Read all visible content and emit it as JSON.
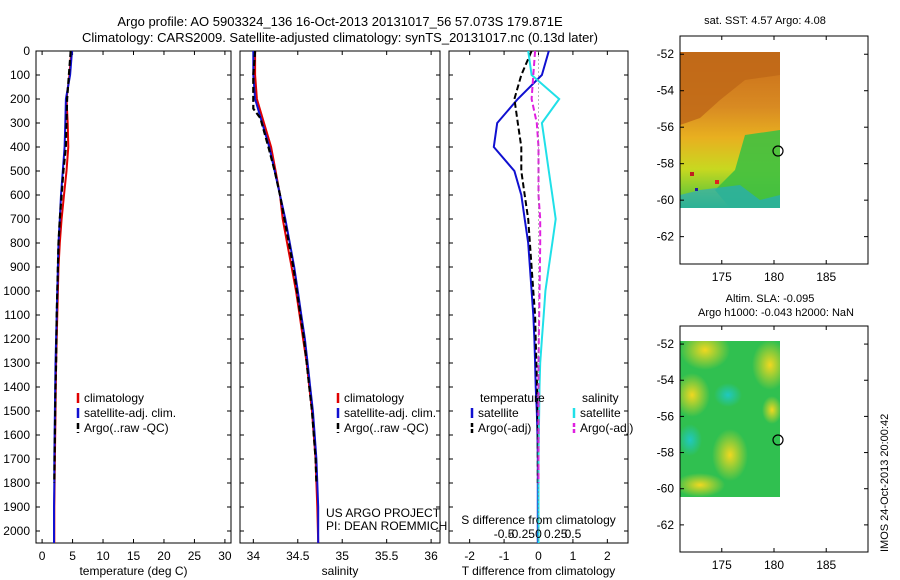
{
  "header": {
    "line1": "Argo profile: AO 5903324_136 16-Oct-2013 20131017_56 57.073S 179.871E",
    "line2": "Climatology: CARS2009. Satellite-adjusted climatology: synTS_20131017.nc (0.13d later)"
  },
  "colors": {
    "climatology": "#e00000",
    "satellite": "#1010d0",
    "argo": "#000000",
    "sal_satellite": "#20e0e8",
    "sal_argo": "#e020e0"
  },
  "chart_data": [
    {
      "type": "line",
      "panel": "temperature",
      "xlabel": "temperature (deg C)",
      "ylabel": "",
      "xlim": [
        -1,
        31
      ],
      "ylim": [
        2050,
        0
      ],
      "xticks": [
        0,
        5,
        10,
        15,
        20,
        25,
        30
      ],
      "yticks": [
        0,
        100,
        200,
        300,
        400,
        500,
        600,
        700,
        800,
        900,
        1000,
        1100,
        1200,
        1300,
        1400,
        1500,
        1600,
        1700,
        1800,
        1900,
        2000
      ],
      "legend": [
        "climatology",
        "satellite-adj. clim.",
        "Argo(..raw -QC)"
      ],
      "series": [
        {
          "name": "climatology",
          "x": [
            4.8,
            4.5,
            4.0,
            4.2,
            4.3,
            4.0,
            3.6,
            3.2,
            2.9,
            2.7,
            2.6,
            2.5,
            2.4,
            2.3,
            2.25,
            2.2,
            2.15,
            2.1,
            2.05,
            2.0,
            2.0
          ],
          "y": [
            0,
            100,
            200,
            300,
            400,
            500,
            600,
            700,
            800,
            900,
            1000,
            1100,
            1200,
            1300,
            1400,
            1500,
            1600,
            1700,
            1800,
            1900,
            2050
          ]
        },
        {
          "name": "satellite-adj. clim.",
          "x": [
            4.9,
            4.6,
            3.9,
            3.8,
            3.7,
            3.4,
            3.1,
            2.9,
            2.7,
            2.6,
            2.5,
            2.4,
            2.3,
            2.2,
            2.15,
            2.1,
            2.05,
            2.0,
            2.0,
            1.95,
            1.95
          ],
          "y": [
            0,
            100,
            200,
            300,
            400,
            500,
            600,
            700,
            800,
            900,
            1000,
            1100,
            1200,
            1300,
            1400,
            1500,
            1600,
            1700,
            1800,
            1900,
            2050
          ]
        },
        {
          "name": "Argo(..raw -QC)",
          "x": [
            4.7,
            4.4,
            4.1,
            4.0,
            3.9,
            3.5,
            3.2,
            2.9,
            2.7,
            2.6,
            2.5,
            2.4,
            2.35,
            2.3,
            2.2,
            2.15,
            2.1,
            2.05,
            2.0
          ],
          "y": [
            0,
            100,
            200,
            300,
            400,
            500,
            600,
            700,
            800,
            900,
            1000,
            1100,
            1200,
            1300,
            1400,
            1500,
            1600,
            1700,
            1800
          ]
        }
      ]
    },
    {
      "type": "line",
      "panel": "salinity",
      "xlabel": "salinity",
      "xlim": [
        33.85,
        36.1
      ],
      "ylim": [
        2050,
        0
      ],
      "xticks": [
        34,
        34.5,
        35,
        35.5,
        36
      ],
      "legend": [
        "climatology",
        "satellite-adj. clim.",
        "Argo(..raw -QC)"
      ],
      "annotation": [
        "US ARGO PROJECT",
        "PI: DEAN ROEMMICH"
      ],
      "series": [
        {
          "name": "climatology",
          "x": [
            34.02,
            34.02,
            34.04,
            34.12,
            34.2,
            34.25,
            34.3,
            34.33,
            34.38,
            34.43,
            34.48,
            34.52,
            34.56,
            34.6,
            34.63,
            34.66,
            34.68,
            34.7,
            34.71,
            34.72,
            34.73
          ],
          "y": [
            0,
            100,
            200,
            300,
            400,
            500,
            600,
            700,
            800,
            900,
            1000,
            1100,
            1200,
            1300,
            1400,
            1500,
            1600,
            1700,
            1800,
            1900,
            2050
          ]
        },
        {
          "name": "satellite-adj. clim.",
          "x": [
            34.0,
            34.0,
            34.02,
            34.1,
            34.18,
            34.24,
            34.3,
            34.36,
            34.41,
            34.46,
            34.5,
            34.54,
            34.58,
            34.61,
            34.64,
            34.67,
            34.69,
            34.71,
            34.72,
            34.73,
            34.73
          ],
          "y": [
            0,
            100,
            200,
            300,
            400,
            500,
            600,
            700,
            800,
            900,
            1000,
            1100,
            1200,
            1300,
            1400,
            1500,
            1600,
            1700,
            1800,
            1900,
            2050
          ]
        },
        {
          "name": "Argo(..raw -QC)",
          "x": [
            34.02,
            34.0,
            34.0,
            34.08,
            34.17,
            34.24,
            34.3,
            34.35,
            34.4,
            34.45,
            34.49,
            34.53,
            34.57,
            34.6,
            34.63,
            34.66,
            34.68,
            34.7,
            34.71
          ],
          "y": [
            0,
            100,
            240,
            280,
            400,
            500,
            600,
            700,
            800,
            900,
            1000,
            1100,
            1200,
            1300,
            1400,
            1500,
            1600,
            1700,
            1800
          ]
        }
      ]
    },
    {
      "type": "line",
      "panel": "difference",
      "xlabel": "T difference from climatology",
      "xlabel_top": "S difference from climatology",
      "xlim": [
        -2.6,
        2.6
      ],
      "ylim": [
        2050,
        0
      ],
      "xticks": [
        -2,
        -1,
        0,
        1,
        2
      ],
      "xtick_labels": [
        "-2",
        "-1",
        "0",
        "1",
        "2"
      ],
      "sticks": [
        "-0.5",
        "-0.25",
        "0",
        "0.25",
        "0.5"
      ],
      "legend_temperature": [
        "temperature",
        "satellite",
        "Argo(-adj)"
      ],
      "legend_salinity": [
        "salinity",
        "satellite",
        "Argo(-adj)"
      ],
      "series": [
        {
          "name": "temperature satellite",
          "x": [
            0.3,
            0.1,
            -0.6,
            -1.2,
            -1.3,
            -0.7,
            -0.5,
            -0.4,
            -0.3,
            -0.25,
            -0.2,
            -0.15,
            -0.12,
            -0.1,
            -0.08,
            -0.05,
            -0.03,
            -0.02,
            -0.02,
            -0.02,
            -0.02
          ],
          "y": [
            0,
            100,
            200,
            300,
            400,
            500,
            600,
            700,
            800,
            900,
            1000,
            1100,
            1200,
            1300,
            1400,
            1500,
            1600,
            1700,
            1800,
            1900,
            2050
          ]
        },
        {
          "name": "temperature Argo(-adj)",
          "x": [
            -0.2,
            -0.5,
            -0.7,
            -0.6,
            -0.5,
            -0.5,
            -0.4,
            -0.3,
            -0.25,
            -0.2,
            -0.15,
            -0.1,
            -0.08,
            -0.06,
            -0.04,
            -0.03,
            -0.02,
            -0.02,
            -0.02
          ],
          "y": [
            0,
            100,
            200,
            300,
            400,
            500,
            600,
            700,
            800,
            900,
            1000,
            1100,
            1200,
            1300,
            1400,
            1500,
            1600,
            1700,
            1800
          ]
        },
        {
          "name": "salinity satellite",
          "x": [
            -0.3,
            -0.2,
            0.6,
            0.1,
            0.2,
            0.3,
            0.4,
            0.5,
            0.4,
            0.3,
            0.2,
            0.15,
            0.1,
            0.05,
            0.03,
            0.02,
            0.01,
            0.0,
            0.0,
            0.0,
            0.0
          ],
          "y": [
            0,
            100,
            200,
            300,
            400,
            500,
            600,
            700,
            800,
            900,
            1000,
            1100,
            1200,
            1300,
            1400,
            1500,
            1600,
            1700,
            1800,
            1900,
            2050
          ]
        },
        {
          "name": "salinity Argo(-adj)",
          "x": [
            -0.1,
            -0.15,
            -0.2,
            -0.05,
            0.0,
            0.0,
            0.0,
            0.05,
            0.05,
            0.04,
            0.03,
            0.02,
            0.01,
            0.0,
            0.0,
            0.0,
            0.0,
            0.0,
            0.0
          ],
          "y": [
            0,
            100,
            200,
            300,
            400,
            500,
            600,
            700,
            800,
            900,
            1000,
            1100,
            1200,
            1300,
            1400,
            1500,
            1600,
            1700,
            1800
          ]
        }
      ]
    },
    {
      "type": "heatmap",
      "panel": "sst_map",
      "title": "sat. SST: 4.57 Argo: 4.08",
      "xlim": [
        171,
        189
      ],
      "ylim": [
        -63.5,
        -51
      ],
      "xticks": [
        175,
        180,
        185
      ],
      "yticks": [
        -52,
        -54,
        -56,
        -58,
        -60,
        -62
      ],
      "ytick_labels": [
        "-52",
        "-54",
        "-56",
        "-58",
        "-60",
        "-62"
      ],
      "data_extent": {
        "lon": [
          171,
          180
        ],
        "lat": [
          -60,
          -51
        ]
      },
      "marker": {
        "lon": 179.871,
        "lat": -57.073
      }
    },
    {
      "type": "heatmap",
      "panel": "sla_map",
      "title": "Altim. SLA: -0.095",
      "subtitle": "Argo h1000: -0.043 h2000: NaN",
      "xlim": [
        171,
        189
      ],
      "ylim": [
        -63.5,
        -51
      ],
      "xticks": [
        175,
        180,
        185
      ],
      "yticks": [
        -52,
        -54,
        -56,
        -58,
        -60,
        -62
      ],
      "ytick_labels": [
        "-52",
        "-54",
        "-56",
        "-58",
        "-60",
        "-62"
      ],
      "data_extent": {
        "lon": [
          171,
          180
        ],
        "lat": [
          -60,
          -51
        ]
      },
      "marker": {
        "lon": 179.871,
        "lat": -57.073
      }
    }
  ],
  "stamp": "IMOS 24-Oct-2013 20:00:42"
}
